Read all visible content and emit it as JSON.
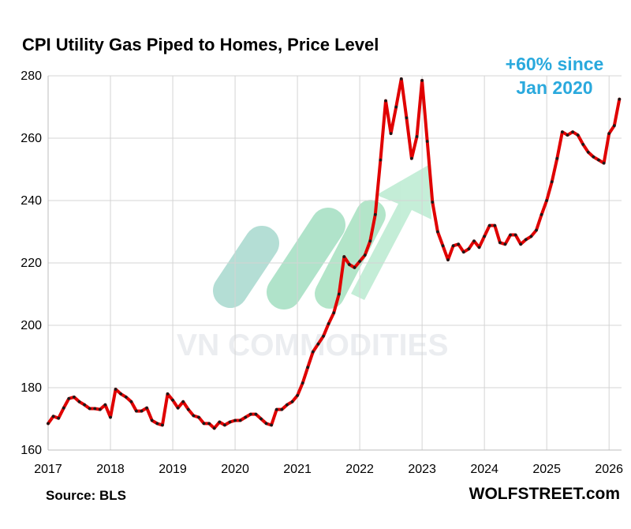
{
  "chart_data": {
    "type": "line",
    "title": "CPI Utility Gas Piped to Homes, Price Level",
    "xlabel": "",
    "ylabel": "",
    "xlim": [
      2017,
      2026.2
    ],
    "ylim": [
      160,
      280
    ],
    "x_ticks": [
      2017,
      2018,
      2019,
      2020,
      2021,
      2022,
      2023,
      2024,
      2025,
      2026
    ],
    "y_ticks": [
      160,
      180,
      200,
      220,
      240,
      260,
      280
    ],
    "grid": "vertical and horizontal",
    "line_color": "#e00000",
    "marker_color": "#1a1a1a",
    "series": [
      {
        "name": "CPI Utility Gas",
        "start": 2017.0,
        "step": 0.08333,
        "values": [
          168.5,
          170.8,
          170.2,
          173.5,
          176.5,
          177,
          175.5,
          174.5,
          173.3,
          173.3,
          173,
          174.5,
          170.5,
          179.5,
          178,
          177,
          175.5,
          172.5,
          172.5,
          173.5,
          169.5,
          168.5,
          168,
          178,
          176,
          173.5,
          175.5,
          173,
          171,
          170.5,
          168.5,
          168.5,
          167,
          169,
          168,
          169,
          169.5,
          169.5,
          170.5,
          171.5,
          171.5,
          170,
          168.5,
          168,
          173,
          173,
          174.5,
          175.5,
          177.5,
          181.5,
          186.5,
          191.5,
          194,
          196.5,
          200.5,
          204,
          210,
          222,
          219.5,
          218.5,
          220.5,
          222.5,
          227,
          235.5,
          253,
          272,
          261.5,
          270,
          279,
          266.5,
          253.5,
          260.5,
          278.5,
          259,
          239.5,
          230,
          225.5,
          221,
          225.5,
          226,
          223.5,
          224.5,
          227,
          225,
          228.5,
          232,
          232,
          226.5,
          226,
          229,
          229,
          226,
          227.5,
          228.5,
          230.5,
          235.5,
          240,
          246,
          253.5,
          262,
          261,
          262,
          261,
          258,
          255.5,
          254,
          253,
          252,
          261.5,
          264,
          272.5
        ]
      }
    ],
    "annotations": [
      "+60% since",
      "Jan 2020"
    ],
    "watermark": "VN COMMODITIES"
  },
  "footer": {
    "source": "Source: BLS",
    "site": "WOLFSTREET.com"
  }
}
